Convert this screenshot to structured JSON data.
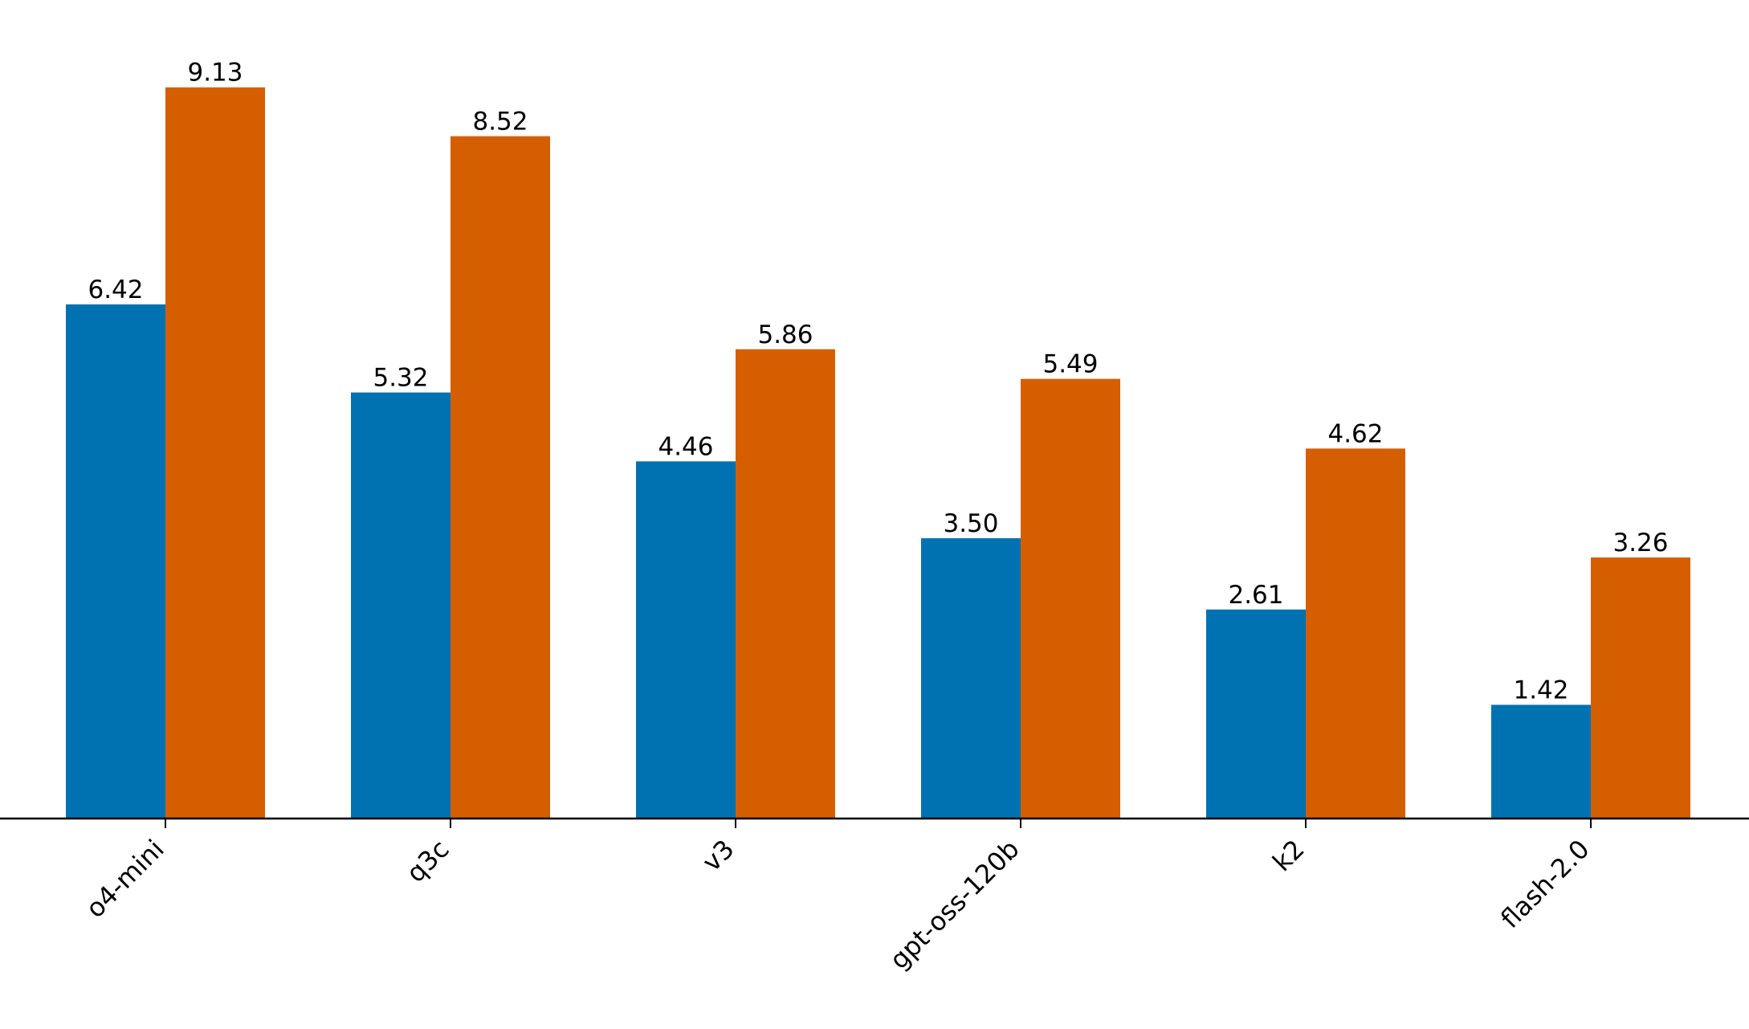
{
  "chart_data": {
    "type": "bar",
    "categories": [
      "o4-mini",
      "q3c",
      "v3",
      "gpt-oss-120b",
      "k2",
      "flash-2.0"
    ],
    "series": [
      {
        "values": [
          6.42,
          5.32,
          4.46,
          3.5,
          2.61,
          1.42
        ],
        "color": "#0072b2"
      },
      {
        "values": [
          9.13,
          8.52,
          5.86,
          5.49,
          4.62,
          3.26
        ],
        "color": "#d55e00"
      }
    ],
    "value_labels": [
      [
        "6.42",
        "5.32",
        "4.46",
        "3.50",
        "2.61",
        "1.42"
      ],
      [
        "9.13",
        "8.52",
        "5.86",
        "5.49",
        "4.62",
        "3.26"
      ]
    ],
    "title": "",
    "xlabel": "",
    "ylabel": "",
    "ylim": [
      0,
      10
    ],
    "grid": false,
    "legend": "none",
    "xtick_rotation": 45
  }
}
